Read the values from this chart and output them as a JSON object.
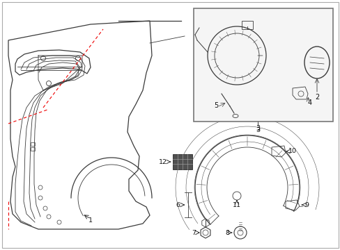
{
  "background_color": "#ffffff",
  "border_color": "#aaaaaa",
  "line_color": "#3a3a3a",
  "red_color": "#ee0000",
  "inset_border_color": "#777777",
  "inset_bg_color": "#f5f5f5",
  "label_color": "#111111",
  "dark_fill": "#505050"
}
